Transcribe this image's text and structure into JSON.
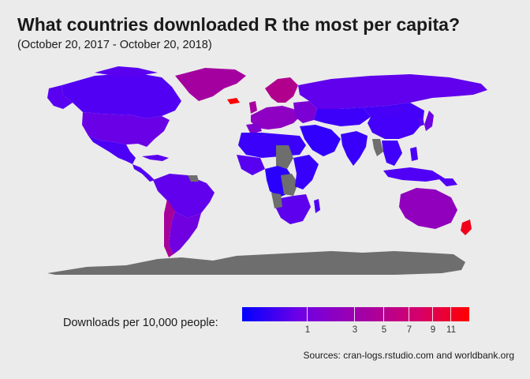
{
  "title": "What countries downloaded R the most per capita?",
  "subtitle": "(October 20, 2017 - October 20, 2018)",
  "legend": {
    "title": "Downloads per 10,000 people:",
    "ticks": [
      "1",
      "3",
      "5",
      "7",
      "9",
      "11"
    ],
    "colors": {
      "low": "#0000ff",
      "mid": "#a700a2",
      "high": "#ff0000",
      "no_data": "#6e6e6e"
    }
  },
  "source": "Sources: cran-logs.rstudio.com and worldbank.org"
}
